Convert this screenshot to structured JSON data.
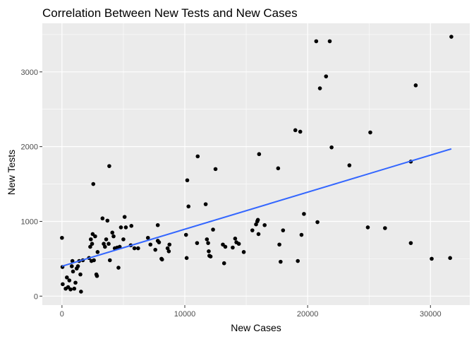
{
  "chart_data": {
    "type": "scatter",
    "title": "Correlation Between New Tests and New Cases",
    "xlabel": "New Cases",
    "ylabel": "New Tests",
    "xlim": [
      -1600,
      33200
    ],
    "ylim": [
      -120,
      3650
    ],
    "xticks": [
      0,
      10000,
      20000,
      30000
    ],
    "xtick_labels": [
      "0",
      "10000",
      "20000",
      "30000"
    ],
    "yticks": [
      0,
      1000,
      2000,
      3000
    ],
    "ytick_labels": [
      "0",
      "1000",
      "2000",
      "3000"
    ],
    "grid": true,
    "legend": "none",
    "colors": {
      "panel": "#ebebeb",
      "grid": "#ffffff",
      "points": "#000000",
      "trend": "#3366ff"
    },
    "trend_line": {
      "type": "linear",
      "x": [
        0,
        31700
      ],
      "y": [
        400,
        1970
      ]
    },
    "points": [
      {
        "x": 0,
        "y": 780
      },
      {
        "x": 40,
        "y": 390
      },
      {
        "x": 60,
        "y": 160
      },
      {
        "x": 300,
        "y": 100
      },
      {
        "x": 400,
        "y": 250
      },
      {
        "x": 500,
        "y": 120
      },
      {
        "x": 600,
        "y": 210
      },
      {
        "x": 700,
        "y": 90
      },
      {
        "x": 800,
        "y": 400
      },
      {
        "x": 850,
        "y": 470
      },
      {
        "x": 900,
        "y": 330
      },
      {
        "x": 1000,
        "y": 100
      },
      {
        "x": 1100,
        "y": 180
      },
      {
        "x": 1200,
        "y": 370
      },
      {
        "x": 1300,
        "y": 400
      },
      {
        "x": 1400,
        "y": 470
      },
      {
        "x": 1500,
        "y": 290
      },
      {
        "x": 1550,
        "y": 60
      },
      {
        "x": 1700,
        "y": 480
      },
      {
        "x": 2200,
        "y": 510
      },
      {
        "x": 2300,
        "y": 660
      },
      {
        "x": 2350,
        "y": 760
      },
      {
        "x": 2400,
        "y": 470
      },
      {
        "x": 2450,
        "y": 700
      },
      {
        "x": 2500,
        "y": 830
      },
      {
        "x": 2550,
        "y": 1500
      },
      {
        "x": 2600,
        "y": 480
      },
      {
        "x": 2700,
        "y": 800
      },
      {
        "x": 2800,
        "y": 290
      },
      {
        "x": 2850,
        "y": 270
      },
      {
        "x": 2900,
        "y": 590
      },
      {
        "x": 3300,
        "y": 1040
      },
      {
        "x": 3400,
        "y": 700
      },
      {
        "x": 3500,
        "y": 660
      },
      {
        "x": 3600,
        "y": 760
      },
      {
        "x": 3700,
        "y": 1010
      },
      {
        "x": 3800,
        "y": 700
      },
      {
        "x": 3850,
        "y": 1740
      },
      {
        "x": 3900,
        "y": 480
      },
      {
        "x": 4100,
        "y": 850
      },
      {
        "x": 4200,
        "y": 800
      },
      {
        "x": 4300,
        "y": 640
      },
      {
        "x": 4500,
        "y": 650
      },
      {
        "x": 4600,
        "y": 380
      },
      {
        "x": 4700,
        "y": 660
      },
      {
        "x": 4800,
        "y": 920
      },
      {
        "x": 5000,
        "y": 760
      },
      {
        "x": 5100,
        "y": 1060
      },
      {
        "x": 5200,
        "y": 920
      },
      {
        "x": 5600,
        "y": 680
      },
      {
        "x": 5650,
        "y": 940
      },
      {
        "x": 5900,
        "y": 640
      },
      {
        "x": 6200,
        "y": 640
      },
      {
        "x": 7000,
        "y": 780
      },
      {
        "x": 7200,
        "y": 690
      },
      {
        "x": 7600,
        "y": 620
      },
      {
        "x": 7800,
        "y": 950
      },
      {
        "x": 7800,
        "y": 740
      },
      {
        "x": 7900,
        "y": 720
      },
      {
        "x": 8100,
        "y": 500
      },
      {
        "x": 8150,
        "y": 490
      },
      {
        "x": 8600,
        "y": 640
      },
      {
        "x": 8700,
        "y": 600
      },
      {
        "x": 8750,
        "y": 690
      },
      {
        "x": 10100,
        "y": 820
      },
      {
        "x": 10150,
        "y": 510
      },
      {
        "x": 10200,
        "y": 1550
      },
      {
        "x": 10300,
        "y": 1200
      },
      {
        "x": 11000,
        "y": 710
      },
      {
        "x": 11050,
        "y": 1870
      },
      {
        "x": 11700,
        "y": 1230
      },
      {
        "x": 11800,
        "y": 760
      },
      {
        "x": 11900,
        "y": 710
      },
      {
        "x": 11950,
        "y": 600
      },
      {
        "x": 12000,
        "y": 540
      },
      {
        "x": 12100,
        "y": 530
      },
      {
        "x": 12300,
        "y": 890
      },
      {
        "x": 12500,
        "y": 1700
      },
      {
        "x": 13100,
        "y": 690
      },
      {
        "x": 13200,
        "y": 440
      },
      {
        "x": 13300,
        "y": 660
      },
      {
        "x": 13900,
        "y": 650
      },
      {
        "x": 14100,
        "y": 770
      },
      {
        "x": 14200,
        "y": 720
      },
      {
        "x": 14400,
        "y": 700
      },
      {
        "x": 14800,
        "y": 590
      },
      {
        "x": 15500,
        "y": 880
      },
      {
        "x": 15800,
        "y": 960
      },
      {
        "x": 15900,
        "y": 1000
      },
      {
        "x": 15950,
        "y": 1020
      },
      {
        "x": 16000,
        "y": 830
      },
      {
        "x": 16050,
        "y": 1900
      },
      {
        "x": 16500,
        "y": 950
      },
      {
        "x": 17600,
        "y": 1710
      },
      {
        "x": 17700,
        "y": 690
      },
      {
        "x": 17800,
        "y": 460
      },
      {
        "x": 18000,
        "y": 880
      },
      {
        "x": 19000,
        "y": 2220
      },
      {
        "x": 19200,
        "y": 470
      },
      {
        "x": 19400,
        "y": 2200
      },
      {
        "x": 19500,
        "y": 820
      },
      {
        "x": 19700,
        "y": 1100
      },
      {
        "x": 20700,
        "y": 3410
      },
      {
        "x": 20800,
        "y": 990
      },
      {
        "x": 21000,
        "y": 2780
      },
      {
        "x": 21500,
        "y": 2940
      },
      {
        "x": 21800,
        "y": 3410
      },
      {
        "x": 21950,
        "y": 1990
      },
      {
        "x": 23400,
        "y": 1750
      },
      {
        "x": 24900,
        "y": 920
      },
      {
        "x": 25100,
        "y": 2190
      },
      {
        "x": 26300,
        "y": 910
      },
      {
        "x": 28400,
        "y": 1800
      },
      {
        "x": 28400,
        "y": 710
      },
      {
        "x": 28800,
        "y": 2820
      },
      {
        "x": 30100,
        "y": 500
      },
      {
        "x": 31600,
        "y": 510
      },
      {
        "x": 31700,
        "y": 3470
      }
    ]
  }
}
